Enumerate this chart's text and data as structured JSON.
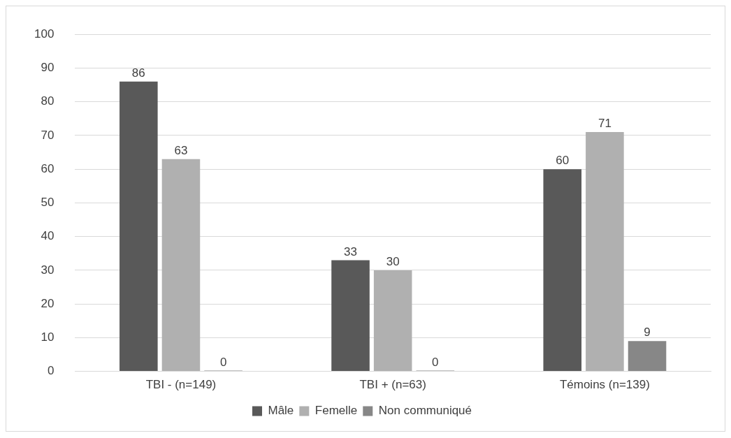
{
  "chart_data": {
    "type": "bar",
    "categories": [
      "TBI - (n=149)",
      "TBI + (n=63)",
      "Témoins (n=139)"
    ],
    "series": [
      {
        "name": "Mâle",
        "color": "#595959",
        "values": [
          86,
          33,
          60
        ]
      },
      {
        "name": "Femelle",
        "color": "#b0b0b0",
        "values": [
          63,
          30,
          71
        ]
      },
      {
        "name": "Non communiqué",
        "color": "#878787",
        "values": [
          0,
          0,
          9
        ]
      }
    ],
    "ylim": [
      0,
      100
    ],
    "yticks": [
      0,
      10,
      20,
      30,
      40,
      50,
      60,
      70,
      80,
      90,
      100
    ],
    "grid": "y",
    "legend": "bottom",
    "data_labels": true
  }
}
